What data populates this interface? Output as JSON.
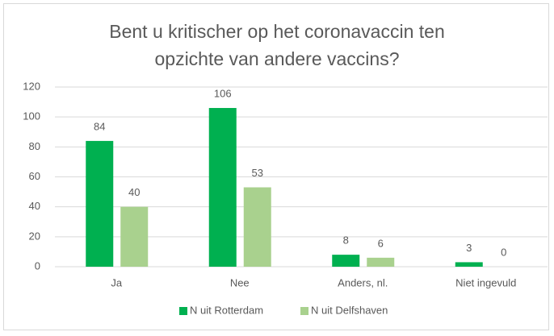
{
  "chart_data": {
    "type": "bar",
    "title": "Bent u kritischer op het coronavaccin ten opzichte van andere vaccins?",
    "categories": [
      "Ja",
      "Nee",
      "Anders, nl.",
      "Niet ingevuld"
    ],
    "series": [
      {
        "name": "N uit Rotterdam",
        "color": "#00b050",
        "values": [
          84,
          106,
          8,
          3
        ]
      },
      {
        "name": "N uit Delfshaven",
        "color": "#a9d18e",
        "values": [
          40,
          53,
          6,
          0
        ]
      }
    ],
    "ylim": [
      0,
      120
    ],
    "yticks": [
      0,
      20,
      40,
      60,
      80,
      100,
      120
    ],
    "grid": true,
    "legend": "bottom"
  }
}
